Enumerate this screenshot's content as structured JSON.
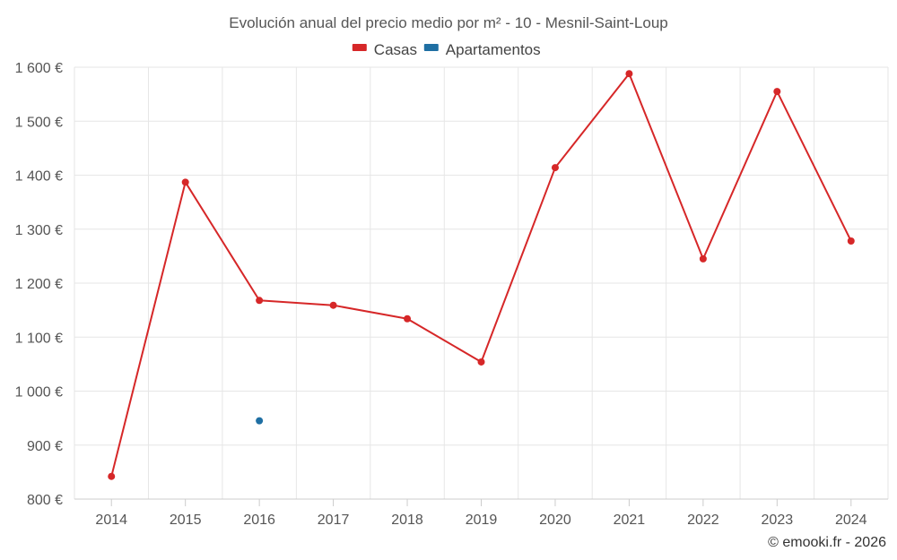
{
  "chart_data": {
    "type": "line",
    "title": "Evolución anual del precio medio por m² - 10 - Mesnil-Saint-Loup",
    "categories": [
      "2014",
      "2015",
      "2016",
      "2017",
      "2018",
      "2019",
      "2020",
      "2021",
      "2022",
      "2023",
      "2024"
    ],
    "series": [
      {
        "name": "Casas",
        "color": "#d62728",
        "values": [
          842,
          1387,
          1168,
          1159,
          1134,
          1054,
          1414,
          1588,
          1245,
          1555,
          1278
        ]
      },
      {
        "name": "Apartamentos",
        "color": "#1f6fa3",
        "values": [
          null,
          null,
          945,
          null,
          null,
          null,
          null,
          null,
          null,
          null,
          null
        ]
      }
    ],
    "ylim": [
      800,
      1600
    ],
    "yticks": [
      800,
      900,
      1000,
      1100,
      1200,
      1300,
      1400,
      1500,
      1600
    ],
    "ytick_labels": [
      "800 €",
      "900 €",
      "1 000 €",
      "1 100 €",
      "1 200 €",
      "1 300 €",
      "1 400 €",
      "1 500 €",
      "1 600 €"
    ],
    "xlabel": "",
    "ylabel": "",
    "grid": true,
    "legend_position": "top-center"
  },
  "credit": "© emooki.fr - 2026"
}
